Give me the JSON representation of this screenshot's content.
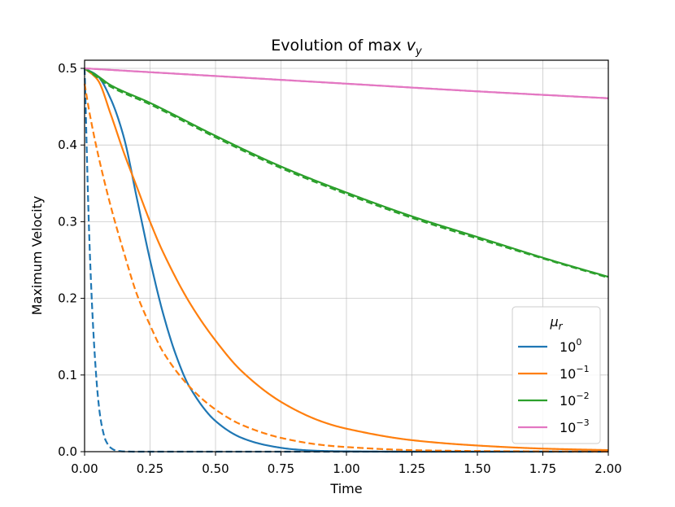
{
  "chart_data": {
    "type": "line",
    "title": "Evolution of max",
    "title_var": "v",
    "title_sub": "y",
    "xlabel": "Time",
    "ylabel": "Maximum Velocity",
    "xlim": [
      0,
      2
    ],
    "ylim": [
      0,
      0.5
    ],
    "xticks": [
      0,
      0.25,
      0.5,
      0.75,
      1,
      1.25,
      1.5,
      1.75,
      2
    ],
    "xtick_labels": [
      "0.00",
      "0.25",
      "0.50",
      "0.75",
      "1.00",
      "1.25",
      "1.50",
      "1.75",
      "2.00"
    ],
    "yticks": [
      0,
      0.1,
      0.2,
      0.3,
      0.4,
      0.5
    ],
    "ytick_labels": [
      "0.0",
      "0.1",
      "0.2",
      "0.3",
      "0.4",
      "0.5"
    ],
    "grid": true,
    "legend": {
      "title": "μ",
      "title_sub": "r",
      "placement": "lower-right",
      "entries": [
        {
          "base": "10",
          "exp": "0",
          "color": "#1f77b4"
        },
        {
          "base": "10",
          "exp": "−1",
          "color": "#ff7f0e"
        },
        {
          "base": "10",
          "exp": "−2",
          "color": "#2ca02c"
        },
        {
          "base": "10",
          "exp": "−3",
          "color": "#e377c2"
        }
      ]
    },
    "series": [
      {
        "name": "10^0 (solid)",
        "color": "#1f77b4",
        "style": "solid",
        "x": [
          0,
          0.05,
          0.1,
          0.15,
          0.2,
          0.25,
          0.3,
          0.35,
          0.4,
          0.5,
          0.6,
          0.7,
          0.8,
          0.9,
          1.0,
          1.2,
          1.5,
          2.0
        ],
        "y": [
          0.5,
          0.49,
          0.46,
          0.41,
          0.33,
          0.25,
          0.18,
          0.125,
          0.085,
          0.04,
          0.018,
          0.008,
          0.003,
          0.001,
          0.0004,
          0,
          0,
          0
        ]
      },
      {
        "name": "10^0 (dashed)",
        "color": "#1f77b4",
        "style": "dashed",
        "x": [
          0,
          0.005,
          0.01,
          0.02,
          0.03,
          0.04,
          0.05,
          0.06,
          0.07,
          0.08,
          0.1,
          0.12,
          0.15,
          0.2,
          0.5,
          1.0,
          2.0
        ],
        "y": [
          0.5,
          0.44,
          0.37,
          0.26,
          0.18,
          0.12,
          0.075,
          0.045,
          0.027,
          0.015,
          0.005,
          0.0015,
          0.0003,
          0,
          0,
          0,
          0
        ]
      },
      {
        "name": "10^-1 (solid)",
        "color": "#ff7f0e",
        "style": "solid",
        "x": [
          0,
          0.05,
          0.1,
          0.15,
          0.2,
          0.25,
          0.3,
          0.4,
          0.5,
          0.6,
          0.75,
          0.9,
          1.0,
          1.25,
          1.5,
          1.75,
          2.0
        ],
        "y": [
          0.5,
          0.485,
          0.44,
          0.39,
          0.345,
          0.3,
          0.26,
          0.195,
          0.145,
          0.105,
          0.065,
          0.04,
          0.03,
          0.015,
          0.008,
          0.004,
          0.002
        ]
      },
      {
        "name": "10^-1 (dashed)",
        "color": "#ff7f0e",
        "style": "dashed",
        "x": [
          0,
          0.02,
          0.05,
          0.1,
          0.15,
          0.2,
          0.25,
          0.3,
          0.4,
          0.5,
          0.6,
          0.75,
          0.9,
          1.0,
          1.25,
          1.5,
          2.0
        ],
        "y": [
          0.48,
          0.44,
          0.39,
          0.32,
          0.26,
          0.205,
          0.165,
          0.13,
          0.085,
          0.055,
          0.035,
          0.018,
          0.009,
          0.006,
          0.002,
          0.0008,
          0.0001
        ]
      },
      {
        "name": "10^-2 (solid)",
        "color": "#2ca02c",
        "style": "solid",
        "x": [
          0,
          0.05,
          0.1,
          0.25,
          0.5,
          0.75,
          1.0,
          1.25,
          1.5,
          1.75,
          2.0
        ],
        "y": [
          0.5,
          0.49,
          0.478,
          0.455,
          0.412,
          0.372,
          0.338,
          0.307,
          0.28,
          0.253,
          0.228
        ]
      },
      {
        "name": "10^-2 (dashed)",
        "color": "#2ca02c",
        "style": "dashed",
        "x": [
          0,
          0.05,
          0.1,
          0.25,
          0.5,
          0.75,
          1.0,
          1.25,
          1.5,
          1.75,
          2.0
        ],
        "y": [
          0.5,
          0.488,
          0.476,
          0.453,
          0.41,
          0.37,
          0.336,
          0.305,
          0.278,
          0.252,
          0.227
        ]
      },
      {
        "name": "10^-3 (solid)",
        "color": "#e377c2",
        "style": "solid",
        "x": [
          0,
          0.5,
          1.0,
          1.5,
          2.0
        ],
        "y": [
          0.5,
          0.49,
          0.48,
          0.47,
          0.461
        ]
      },
      {
        "name": "10^-3 (dashed)",
        "color": "#e377c2",
        "style": "dashed",
        "x": [
          0,
          0.5,
          1.0,
          1.5,
          2.0
        ],
        "y": [
          0.5,
          0.49,
          0.48,
          0.47,
          0.461
        ]
      }
    ]
  }
}
